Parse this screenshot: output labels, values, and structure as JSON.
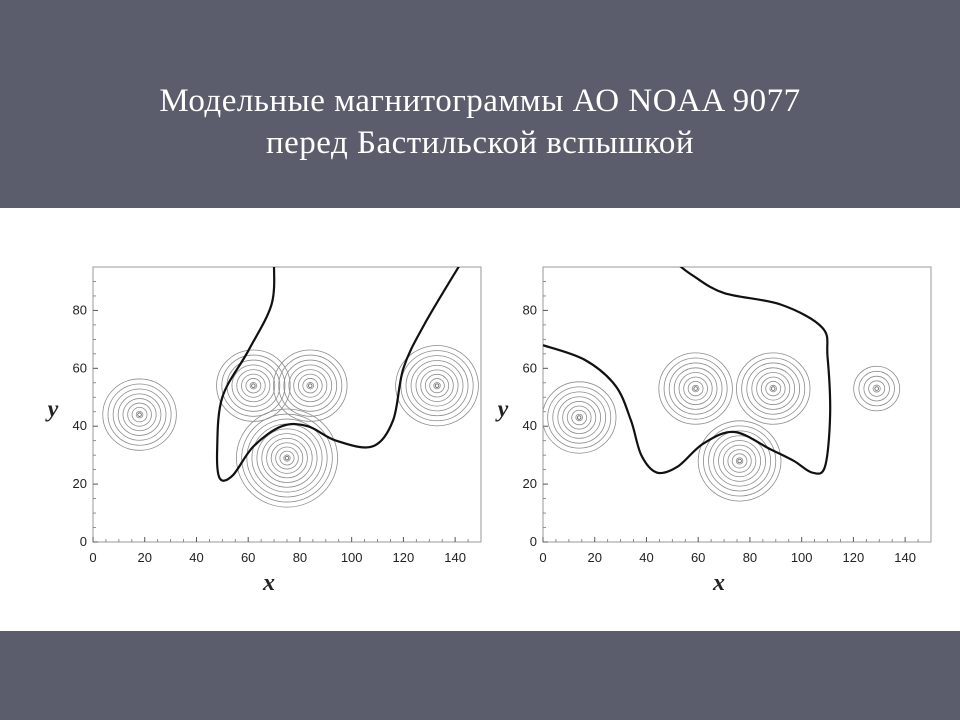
{
  "slide": {
    "title_line1": "Модельные магнитограммы АО NOAA 9077",
    "title_line2": "перед Бастильской вспышкой",
    "band_color": "#5b5d6c"
  },
  "chart_data": [
    {
      "type": "contour",
      "title": "",
      "xlabel": "x",
      "ylabel": "y",
      "xlim": [
        0,
        150
      ],
      "ylim": [
        0,
        95
      ],
      "xticks": [
        0,
        20,
        40,
        60,
        80,
        100,
        120,
        140
      ],
      "yticks": [
        0,
        20,
        40,
        60,
        80
      ],
      "sources": [
        {
          "x": 18,
          "y": 44,
          "rings": 8
        },
        {
          "x": 62,
          "y": 54,
          "rings": 8
        },
        {
          "x": 84,
          "y": 54,
          "rings": 8
        },
        {
          "x": 75,
          "y": 29,
          "rings": 11
        },
        {
          "x": 133,
          "y": 54,
          "rings": 9
        }
      ],
      "neutral_line": [
        [
          70,
          96
        ],
        [
          69,
          82
        ],
        [
          60,
          66
        ],
        [
          50,
          50
        ],
        [
          48,
          32
        ],
        [
          49,
          22
        ],
        [
          54,
          23
        ],
        [
          62,
          33
        ],
        [
          73,
          40
        ],
        [
          83,
          40
        ],
        [
          94,
          35
        ],
        [
          108,
          33
        ],
        [
          116,
          42
        ],
        [
          120,
          60
        ],
        [
          128,
          75
        ],
        [
          142,
          96
        ]
      ]
    },
    {
      "type": "contour",
      "title": "",
      "xlabel": "x",
      "ylabel": "y",
      "xlim": [
        0,
        150
      ],
      "ylim": [
        0,
        95
      ],
      "xticks": [
        0,
        20,
        40,
        60,
        80,
        100,
        120,
        140
      ],
      "yticks": [
        0,
        20,
        40,
        60,
        80
      ],
      "sources": [
        {
          "x": 14,
          "y": 43,
          "rings": 8
        },
        {
          "x": 59,
          "y": 53,
          "rings": 8
        },
        {
          "x": 89,
          "y": 53,
          "rings": 8
        },
        {
          "x": 76,
          "y": 28,
          "rings": 9
        },
        {
          "x": 129,
          "y": 53,
          "rings": 5
        }
      ],
      "neutral_line": [
        [
          0,
          68
        ],
        [
          16,
          63
        ],
        [
          28,
          54
        ],
        [
          34,
          42
        ],
        [
          38,
          30
        ],
        [
          44,
          24
        ],
        [
          52,
          26
        ],
        [
          62,
          34
        ],
        [
          74,
          38
        ],
        [
          88,
          32
        ],
        [
          97,
          28
        ],
        [
          104,
          24
        ],
        [
          109,
          26
        ],
        [
          111,
          44
        ],
        [
          110,
          64
        ],
        [
          108,
          74
        ],
        [
          92,
          82
        ],
        [
          70,
          86
        ],
        [
          58,
          92
        ],
        [
          52,
          96
        ]
      ]
    }
  ]
}
